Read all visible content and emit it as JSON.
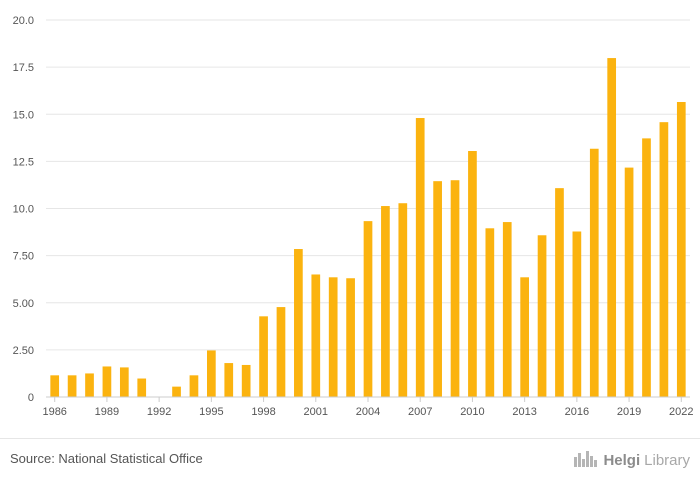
{
  "chart_data": {
    "type": "bar",
    "title": "",
    "xlabel": "",
    "ylabel": "",
    "ylim": [
      0,
      20
    ],
    "yticks": [
      "0",
      "2.50",
      "5.00",
      "7.50",
      "10.0",
      "12.5",
      "15.0",
      "17.5",
      "20.0"
    ],
    "xtick_labels": [
      "1986",
      "1989",
      "1992",
      "1995",
      "1998",
      "2001",
      "2004",
      "2007",
      "2010",
      "2013",
      "2016",
      "2019",
      "2022"
    ],
    "categories": [
      "1986",
      "1987",
      "1988",
      "1989",
      "1990",
      "1991",
      "1992",
      "1993",
      "1994",
      "1995",
      "1996",
      "1997",
      "1998",
      "1999",
      "2000",
      "2001",
      "2002",
      "2003",
      "2004",
      "2005",
      "2006",
      "2007",
      "2008",
      "2009",
      "2010",
      "2011",
      "2012",
      "2013",
      "2014",
      "2015",
      "2016",
      "2017",
      "2018",
      "2019",
      "2020",
      "2021",
      "2022"
    ],
    "values": [
      1.15,
      1.15,
      1.25,
      1.62,
      1.57,
      0.98,
      0.0,
      0.55,
      1.15,
      2.47,
      1.8,
      1.7,
      4.28,
      4.77,
      7.85,
      6.5,
      6.35,
      6.3,
      9.33,
      10.13,
      10.28,
      14.8,
      11.45,
      11.5,
      13.05,
      8.95,
      9.28,
      6.35,
      8.58,
      11.08,
      8.78,
      13.17,
      17.98,
      12.17,
      13.72,
      14.58,
      15.65
    ],
    "bar_color": "#FBB30F",
    "grid": true
  },
  "footer": {
    "source": "Source: National Statistical Office",
    "logo_strong": "Helgi",
    "logo_light": "Library"
  },
  "colors": {
    "grid": "#e6e6e6",
    "axis": "#cccccc",
    "text": "#555555"
  },
  "icons": {
    "logo": "city-skyline-icon"
  }
}
